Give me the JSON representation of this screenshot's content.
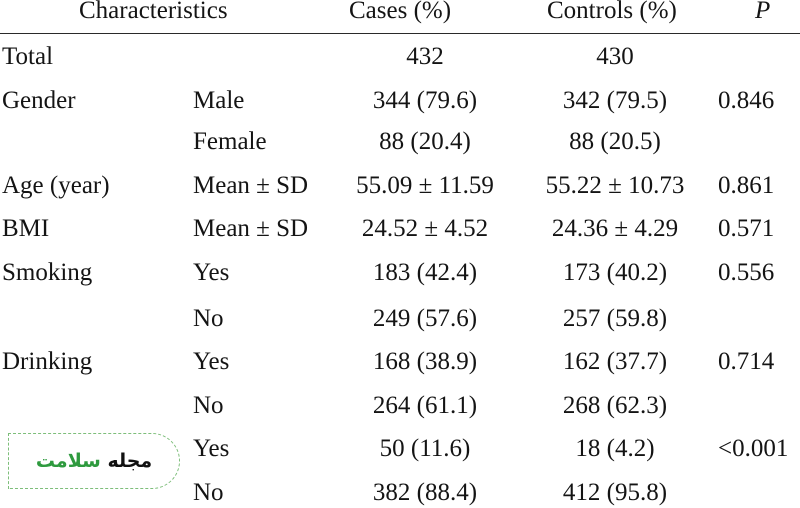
{
  "table": {
    "headers": {
      "characteristics": "Characteristics",
      "cases": "Cases (%)",
      "controls": "Controls (%)",
      "p": "P"
    },
    "rows": [
      {
        "characteristic": "Total",
        "sub": "",
        "cases": "432",
        "controls": "430",
        "p": ""
      },
      {
        "characteristic": "Gender",
        "sub": "Male",
        "cases": "344 (79.6)",
        "controls": "342 (79.5)",
        "p": "0.846"
      },
      {
        "characteristic": "",
        "sub": "Female",
        "cases": "88 (20.4)",
        "controls": "88 (20.5)",
        "p": ""
      },
      {
        "characteristic": "Age (year)",
        "sub": "Mean ± SD",
        "cases": "55.09 ± 11.59",
        "controls": "55.22 ± 10.73",
        "p": "0.861"
      },
      {
        "characteristic": "BMI",
        "sub": "Mean ± SD",
        "cases": "24.52 ± 4.52",
        "controls": "24.36 ± 4.29",
        "p": "0.571"
      },
      {
        "characteristic": "Smoking",
        "sub": "Yes",
        "cases": "183 (42.4)",
        "controls": "173 (40.2)",
        "p": "0.556"
      },
      {
        "characteristic": "",
        "sub": "No",
        "cases": "249 (57.6)",
        "controls": "257 (59.8)",
        "p": ""
      },
      {
        "characteristic": "Drinking",
        "sub": "Yes",
        "cases": "168 (38.9)",
        "controls": "162 (37.7)",
        "p": "0.714"
      },
      {
        "characteristic": "",
        "sub": "No",
        "cases": "264 (61.1)",
        "controls": "268 (62.3)",
        "p": ""
      },
      {
        "characteristic": "",
        "sub": "Yes",
        "cases": "50 (11.6)",
        "controls": "18 (4.2)",
        "p": "<0.001"
      },
      {
        "characteristic": "",
        "sub": "No",
        "cases": "382 (88.4)",
        "controls": "412 (95.8)",
        "p": ""
      }
    ]
  },
  "watermark": {
    "word1": "مجله",
    "word2": "سلامت",
    "color_green": "#2e9a3e"
  }
}
